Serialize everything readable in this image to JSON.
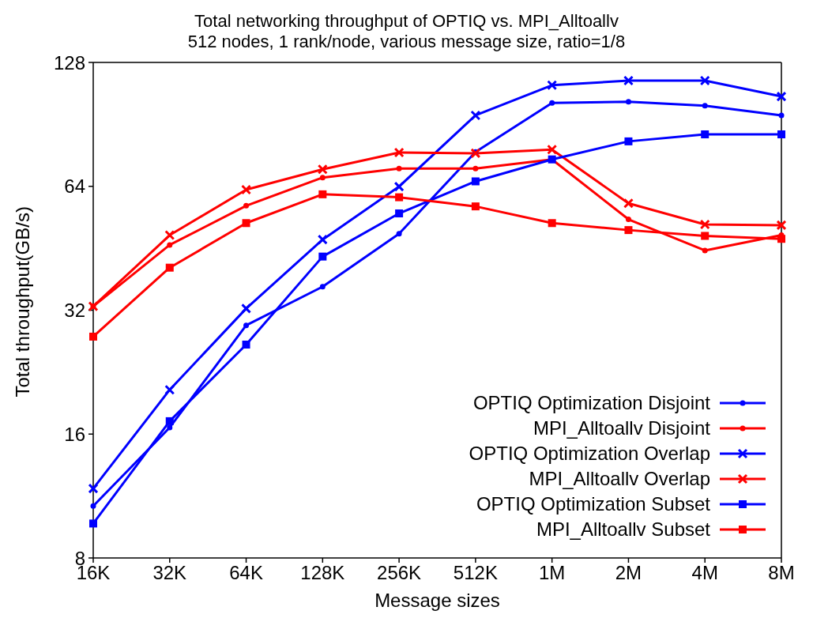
{
  "chart_data": {
    "type": "line",
    "title": "Total networking throughput of OPTIQ vs. MPI_Alltoallv",
    "subtitle": "512 nodes, 1 rank/node, various message size, ratio=1/8",
    "xlabel": "Message sizes",
    "ylabel": "Total throughput(GB/s)",
    "categories": [
      "16K",
      "32K",
      "64K",
      "128K",
      "256K",
      "512K",
      "1M",
      "2M",
      "4M",
      "8M"
    ],
    "log": "y",
    "ylim": [
      8,
      128
    ],
    "yticks": [
      8,
      16,
      32,
      64,
      128
    ],
    "grid": false,
    "legend": "bottom right",
    "series": [
      {
        "name": "OPTIQ Optimization Disjoint",
        "color": "#0000ff",
        "marker": "circle",
        "values": [
          10.7,
          16.6,
          29.4,
          36.5,
          49.1,
          77.6,
          102,
          102.7,
          100.5,
          95.2
        ]
      },
      {
        "name": "MPI_Alltoallv Disjoint",
        "color": "#ff0000",
        "marker": "circle",
        "values": [
          32.7,
          46.1,
          57.4,
          67.2,
          70.7,
          70.7,
          74.4,
          53.2,
          44.7,
          48.7
        ]
      },
      {
        "name": "OPTIQ Optimization Overlap",
        "color": "#0000ff",
        "marker": "cross",
        "values": [
          11.8,
          20.5,
          32.3,
          47.5,
          63.9,
          95.2,
          112.7,
          115.6,
          115.6,
          105.8
        ]
      },
      {
        "name": "MPI_Alltoallv Overlap",
        "color": "#ff0000",
        "marker": "cross",
        "values": [
          32.7,
          48.7,
          62.8,
          70.4,
          77.3,
          77.0,
          78.6,
          58.2,
          51.7,
          51.5
        ]
      },
      {
        "name": "OPTIQ Optimization Subset",
        "color": "#0000ff",
        "marker": "square",
        "values": [
          9.7,
          17.2,
          26.4,
          43.2,
          55.0,
          65.8,
          74.4,
          82.3,
          85.6,
          85.6
        ]
      },
      {
        "name": "MPI_Alltoallv Subset",
        "color": "#ff0000",
        "marker": "square",
        "values": [
          27.6,
          40.6,
          52.1,
          61.2,
          60.2,
          57.2,
          52.1,
          50.1,
          48.5,
          47.7
        ]
      }
    ]
  }
}
